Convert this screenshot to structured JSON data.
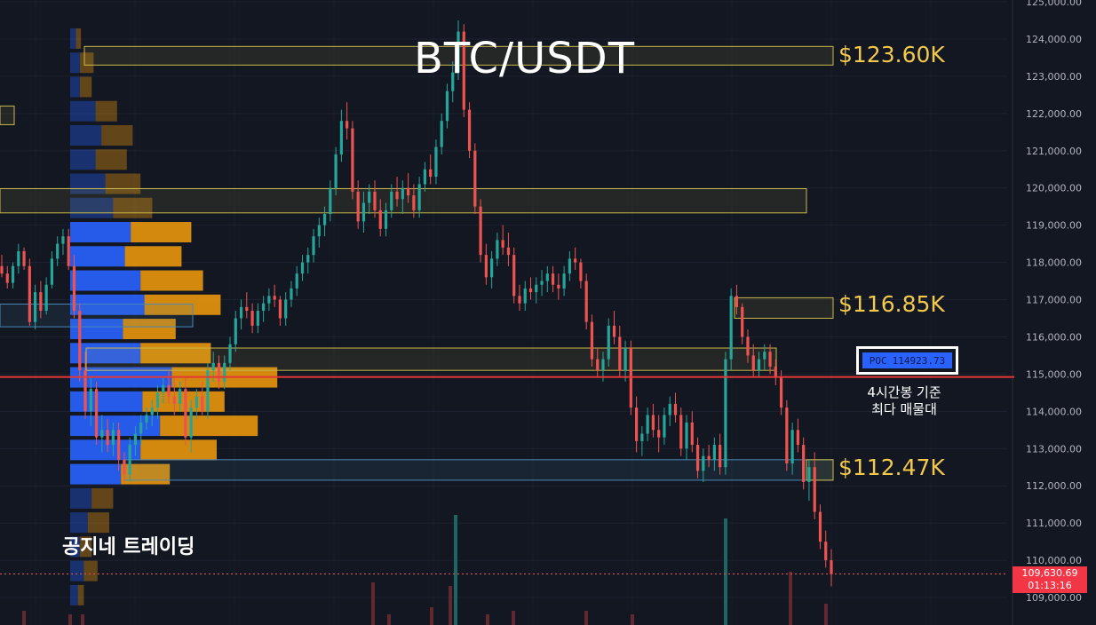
{
  "title": "BTC/USDT",
  "watermark": "공지네 트레이딩",
  "colors": {
    "background": "#131722",
    "up": "#26a69a",
    "down": "#ef5350",
    "profile_blue": "#2962ff",
    "profile_orange": "#f59e0b",
    "level_text": "#f2c94c",
    "poc_line": "#e53935"
  },
  "levels": [
    {
      "label": "$123.60K",
      "price": 123600
    },
    {
      "label": "$116.85K",
      "price": 116850
    },
    {
      "label": "$112.47K",
      "price": 112470
    }
  ],
  "poc": {
    "label": "POC",
    "value": "114923.73",
    "note_line1": "4시간봉 기준",
    "note_line2": "최다 매물대"
  },
  "current": {
    "price": "109,630.69",
    "countdown": "01:13:16"
  },
  "chart_data": {
    "type": "candlestick",
    "y_axis": {
      "position": "right",
      "ticks": [
        109000,
        110000,
        111000,
        112000,
        113000,
        114000,
        115000,
        116000,
        117000,
        118000,
        119000,
        120000,
        121000,
        122000,
        123000,
        124000,
        125000
      ],
      "tick_labels": [
        "109,000.00",
        "110,000.00",
        "111,000.00",
        "112,000.00",
        "113,000.00",
        "114,000.00",
        "115,000.00",
        "116,000.00",
        "117,000.00",
        "118,000.00",
        "119,000.00",
        "120,000.00",
        "121,000.00",
        "122,000.00",
        "123,000.00",
        "124,000.00",
        "125,000.00"
      ],
      "range": [
        108700,
        125050
      ]
    },
    "grid": true,
    "volume_profile": [
      {
        "price": 124000,
        "buy": 0.3,
        "sell": 0.25
      },
      {
        "price": 123350,
        "buy": 0.5,
        "sell": 0.7
      },
      {
        "price": 122700,
        "buy": 0.5,
        "sell": 0.6
      },
      {
        "price": 122050,
        "buy": 1.3,
        "sell": 1.1
      },
      {
        "price": 121400,
        "buy": 1.6,
        "sell": 1.6
      },
      {
        "price": 120750,
        "buy": 1.3,
        "sell": 1.6
      },
      {
        "price": 120100,
        "buy": 1.8,
        "sell": 1.8
      },
      {
        "price": 119450,
        "buy": 2.2,
        "sell": 2.0
      },
      {
        "price": 118800,
        "buy": 3.1,
        "sell": 3.1
      },
      {
        "price": 118150,
        "buy": 2.8,
        "sell": 2.9
      },
      {
        "price": 117500,
        "buy": 3.6,
        "sell": 3.2
      },
      {
        "price": 116850,
        "buy": 3.8,
        "sell": 3.9
      },
      {
        "price": 116200,
        "buy": 2.7,
        "sell": 2.7
      },
      {
        "price": 115550,
        "buy": 3.6,
        "sell": 3.6
      },
      {
        "price": 114900,
        "buy": 5.2,
        "sell": 5.4
      },
      {
        "price": 114250,
        "buy": 3.7,
        "sell": 4.2
      },
      {
        "price": 113600,
        "buy": 4.6,
        "sell": 5.0
      },
      {
        "price": 112950,
        "buy": 3.6,
        "sell": 3.9
      },
      {
        "price": 112300,
        "buy": 2.6,
        "sell": 2.5
      },
      {
        "price": 111650,
        "buy": 1.1,
        "sell": 1.1
      },
      {
        "price": 111000,
        "buy": 0.9,
        "sell": 1.1
      },
      {
        "price": 110350,
        "buy": 0.5,
        "sell": 0.6
      },
      {
        "price": 109700,
        "buy": 0.7,
        "sell": 0.7
      },
      {
        "price": 109050,
        "buy": 0.4,
        "sell": 0.3
      }
    ],
    "zones": [
      {
        "top": 123800,
        "bottom": 123300,
        "color": "yellow"
      },
      {
        "top": 119980,
        "bottom": 119330,
        "color": "yellow"
      },
      {
        "top": 117050,
        "bottom": 116500,
        "color": "yellow"
      },
      {
        "top": 116880,
        "bottom": 116270,
        "color": "blue"
      },
      {
        "top": 115700,
        "bottom": 115100,
        "color": "yellow"
      },
      {
        "top": 112700,
        "bottom": 112150,
        "color": "blue"
      },
      {
        "top": 112700,
        "bottom": 112150,
        "color": "yellow"
      }
    ],
    "candles": [
      [
        117900,
        118200,
        117600,
        117700
      ],
      [
        117700,
        117900,
        117300,
        117450
      ],
      [
        117450,
        118000,
        117300,
        117900
      ],
      [
        117900,
        118500,
        117700,
        118300
      ],
      [
        118300,
        118400,
        117800,
        117900
      ],
      [
        117900,
        118100,
        116300,
        116400
      ],
      [
        116400,
        117400,
        116200,
        117200
      ],
      [
        117200,
        117500,
        116500,
        116700
      ],
      [
        116700,
        117600,
        116600,
        117400
      ],
      [
        117400,
        118300,
        117300,
        118100
      ],
      [
        118100,
        118700,
        117900,
        118500
      ],
      [
        118500,
        118900,
        118200,
        118700
      ],
      [
        118700,
        118900,
        117800,
        117900
      ],
      [
        117900,
        118200,
        116500,
        116700
      ],
      [
        116700,
        116900,
        114800,
        115100
      ],
      [
        115100,
        115600,
        113800,
        114000
      ],
      [
        114000,
        114900,
        113600,
        114600
      ],
      [
        114600,
        114800,
        113100,
        113300
      ],
      [
        113300,
        113900,
        112900,
        113500
      ],
      [
        113500,
        113800,
        112900,
        113100
      ],
      [
        113100,
        113700,
        112800,
        113500
      ],
      [
        113500,
        113700,
        112400,
        112700
      ],
      [
        112700,
        112900,
        112100,
        112300
      ],
      [
        112300,
        113300,
        112100,
        113100
      ],
      [
        113100,
        113600,
        112800,
        113400
      ],
      [
        113400,
        113900,
        113100,
        113700
      ],
      [
        113700,
        114100,
        113500,
        113900
      ],
      [
        113900,
        114300,
        113600,
        114100
      ],
      [
        114100,
        114700,
        113800,
        114500
      ],
      [
        114500,
        114900,
        114200,
        114700
      ],
      [
        114700,
        115100,
        114200,
        114400
      ],
      [
        114400,
        114900,
        113900,
        114200
      ],
      [
        114200,
        114800,
        114000,
        114600
      ],
      [
        114600,
        114900,
        113100,
        113300
      ],
      [
        113300,
        114300,
        112900,
        114100
      ],
      [
        114100,
        114600,
        113800,
        114400
      ],
      [
        114400,
        114800,
        113900,
        114000
      ],
      [
        114000,
        115300,
        113800,
        115100
      ],
      [
        115100,
        115600,
        114800,
        115300
      ],
      [
        115300,
        115500,
        114600,
        114800
      ],
      [
        114800,
        115500,
        114600,
        115300
      ],
      [
        115300,
        116000,
        115100,
        115800
      ],
      [
        115800,
        116700,
        115600,
        116500
      ],
      [
        116500,
        117000,
        116200,
        116800
      ],
      [
        116800,
        117200,
        116500,
        116700
      ],
      [
        116700,
        116900,
        116100,
        116300
      ],
      [
        116300,
        116900,
        116100,
        116700
      ],
      [
        116700,
        117100,
        116400,
        116900
      ],
      [
        116900,
        117300,
        116700,
        117100
      ],
      [
        117100,
        117400,
        116800,
        117000
      ],
      [
        117000,
        117100,
        116300,
        116500
      ],
      [
        116500,
        117200,
        116300,
        117000
      ],
      [
        117000,
        117500,
        116800,
        117300
      ],
      [
        117300,
        117900,
        117100,
        117700
      ],
      [
        117700,
        118200,
        117500,
        118000
      ],
      [
        118000,
        118400,
        117700,
        118200
      ],
      [
        118200,
        118900,
        118000,
        118700
      ],
      [
        118700,
        119200,
        118400,
        119000
      ],
      [
        119000,
        119500,
        118700,
        119300
      ],
      [
        119300,
        120200,
        119100,
        120000
      ],
      [
        120000,
        121100,
        119800,
        120900
      ],
      [
        120900,
        122100,
        120700,
        121800
      ],
      [
        121800,
        122300,
        121300,
        121600
      ],
      [
        121600,
        121800,
        119700,
        119900
      ],
      [
        119900,
        120200,
        118900,
        119100
      ],
      [
        119100,
        119900,
        118800,
        119600
      ],
      [
        119600,
        120100,
        119300,
        119900
      ],
      [
        119900,
        120200,
        119200,
        119400
      ],
      [
        119400,
        119700,
        118700,
        118900
      ],
      [
        118900,
        119600,
        118700,
        119400
      ],
      [
        119400,
        120100,
        119200,
        119900
      ],
      [
        119900,
        120300,
        119500,
        119700
      ],
      [
        119700,
        120200,
        119300,
        120000
      ],
      [
        120000,
        120400,
        119600,
        119800
      ],
      [
        119800,
        120100,
        119200,
        119400
      ],
      [
        119400,
        120300,
        119200,
        120100
      ],
      [
        120100,
        120700,
        119900,
        120500
      ],
      [
        120500,
        120900,
        120100,
        120300
      ],
      [
        120300,
        121300,
        120100,
        121100
      ],
      [
        121100,
        122000,
        120900,
        121800
      ],
      [
        121800,
        122800,
        121600,
        122600
      ],
      [
        122600,
        123400,
        122300,
        123100
      ],
      [
        123100,
        124500,
        122900,
        124200
      ],
      [
        124200,
        124400,
        121900,
        122100
      ],
      [
        122100,
        122300,
        120800,
        121000
      ],
      [
        121000,
        121200,
        119300,
        119500
      ],
      [
        119500,
        119700,
        118000,
        118200
      ],
      [
        118200,
        118500,
        117400,
        117600
      ],
      [
        117600,
        118300,
        117300,
        118100
      ],
      [
        118100,
        118800,
        117900,
        118600
      ],
      [
        118600,
        119000,
        118200,
        118400
      ],
      [
        118400,
        118800,
        117900,
        118200
      ],
      [
        118200,
        118400,
        116900,
        117100
      ],
      [
        117100,
        117400,
        116700,
        116900
      ],
      [
        116900,
        117500,
        116700,
        117300
      ],
      [
        117300,
        117600,
        117000,
        117200
      ],
      [
        117200,
        117600,
        116900,
        117400
      ],
      [
        117400,
        117800,
        117100,
        117500
      ],
      [
        117500,
        117900,
        117200,
        117700
      ],
      [
        117700,
        117900,
        117200,
        117400
      ],
      [
        117400,
        117700,
        117000,
        117300
      ],
      [
        117300,
        117900,
        117100,
        117700
      ],
      [
        117700,
        118300,
        117500,
        118100
      ],
      [
        118100,
        118400,
        117800,
        118000
      ],
      [
        118000,
        118100,
        117300,
        117500
      ],
      [
        117500,
        117700,
        116200,
        116400
      ],
      [
        116400,
        116600,
        115200,
        115400
      ],
      [
        115400,
        115700,
        114900,
        115100
      ],
      [
        115100,
        115600,
        114800,
        115400
      ],
      [
        115400,
        116500,
        115200,
        116300
      ],
      [
        116300,
        116700,
        115800,
        116000
      ],
      [
        116000,
        116300,
        114900,
        115100
      ],
      [
        115100,
        115900,
        114800,
        115700
      ],
      [
        115700,
        115900,
        113900,
        114100
      ],
      [
        114100,
        114400,
        112900,
        113200
      ],
      [
        113200,
        113600,
        112800,
        113400
      ],
      [
        113400,
        114100,
        113200,
        113900
      ],
      [
        113900,
        114200,
        113300,
        113500
      ],
      [
        113500,
        113900,
        112900,
        113300
      ],
      [
        113300,
        114100,
        113100,
        113900
      ],
      [
        113900,
        114400,
        113600,
        114200
      ],
      [
        114200,
        114500,
        113700,
        113900
      ],
      [
        113900,
        114100,
        112800,
        113000
      ],
      [
        113000,
        113900,
        112700,
        113700
      ],
      [
        113700,
        114000,
        112900,
        113100
      ],
      [
        113100,
        113300,
        112200,
        112400
      ],
      [
        112400,
        113000,
        112100,
        112800
      ],
      [
        112800,
        113100,
        112500,
        112700
      ],
      [
        112700,
        113300,
        112400,
        113100
      ],
      [
        113100,
        113400,
        112300,
        112500
      ],
      [
        112500,
        115600,
        112300,
        115400
      ],
      [
        115400,
        117300,
        115100,
        117100
      ],
      [
        117100,
        117400,
        116600,
        116800
      ],
      [
        116800,
        116900,
        115800,
        116000
      ],
      [
        116000,
        116200,
        115300,
        115500
      ],
      [
        115500,
        115800,
        114900,
        115100
      ],
      [
        115100,
        115600,
        114900,
        115400
      ],
      [
        115400,
        115800,
        115100,
        115600
      ],
      [
        115600,
        115800,
        115000,
        115200
      ],
      [
        115200,
        115400,
        114700,
        114900
      ],
      [
        114900,
        115100,
        113900,
        114100
      ],
      [
        114100,
        114300,
        112400,
        112600
      ],
      [
        112600,
        113700,
        112300,
        113500
      ],
      [
        113500,
        113800,
        112900,
        113100
      ],
      [
        113100,
        113300,
        111900,
        112100
      ],
      [
        112100,
        112700,
        111600,
        112500
      ],
      [
        112500,
        112900,
        111100,
        111300
      ],
      [
        111300,
        111500,
        110300,
        110500
      ],
      [
        110500,
        110800,
        109800,
        110000
      ],
      [
        110000,
        110300,
        109300,
        109630
      ]
    ],
    "volume": [
      {
        "x": 25,
        "h": 4
      },
      {
        "x": 77,
        "h": 3
      },
      {
        "x": 91,
        "h": 3
      },
      {
        "x": 418,
        "h": 12
      },
      {
        "x": 436,
        "h": 3
      },
      {
        "x": 484,
        "h": 5
      },
      {
        "x": 505,
        "h": 11
      },
      {
        "x": 511,
        "h": 31
      },
      {
        "x": 547,
        "h": 3
      },
      {
        "x": 576,
        "h": 4
      },
      {
        "x": 658,
        "h": 4
      },
      {
        "x": 710,
        "h": 3
      },
      {
        "x": 815,
        "h": 30
      },
      {
        "x": 888,
        "h": 15
      },
      {
        "x": 928,
        "h": 6
      }
    ]
  }
}
